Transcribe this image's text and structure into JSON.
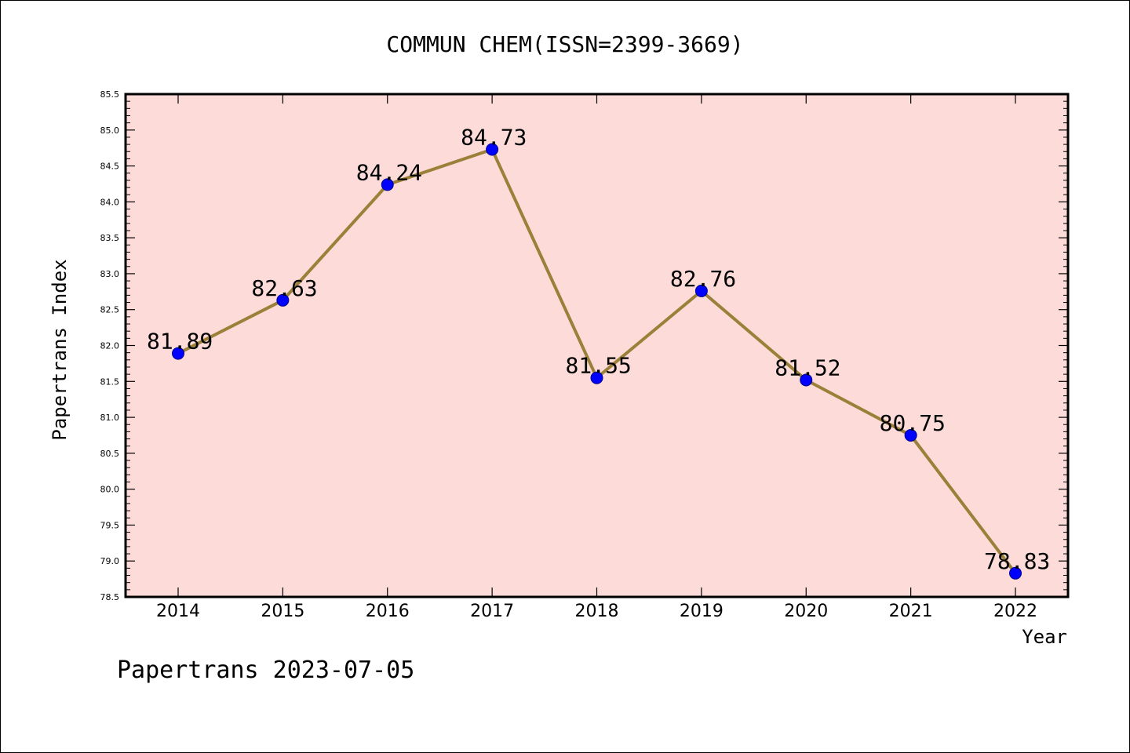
{
  "chart_data": {
    "type": "line",
    "title": "COMMUN CHEM(ISSN=2399-3669)",
    "xlabel": "Year",
    "ylabel": "Papertrans Index",
    "categories": [
      "2014",
      "2015",
      "2016",
      "2017",
      "2018",
      "2019",
      "2020",
      "2021",
      "2022"
    ],
    "series": [
      {
        "values": [
          81.89,
          82.63,
          84.24,
          84.73,
          81.55,
          82.76,
          81.52,
          80.75,
          78.83
        ]
      }
    ],
    "value_labels": [
      "81.89",
      "82.63",
      "84.24",
      "84.73",
      "81.55",
      "82.76",
      "81.52",
      "80.75",
      "78.83"
    ],
    "ylim": [
      78.5,
      85.5
    ],
    "yticks": [
      "78.5",
      "79.0",
      "79.5",
      "80.0",
      "80.5",
      "81.0",
      "81.5",
      "82.0",
      "82.5",
      "83.0",
      "83.5",
      "84.0",
      "84.5",
      "85.0",
      "85.5"
    ],
    "grid": false,
    "legend": "none",
    "colors": {
      "plot_background": "#fddbd8",
      "line": "#9a8038",
      "marker": "#0000ff"
    }
  },
  "footer": "Papertrans 2023-07-05"
}
